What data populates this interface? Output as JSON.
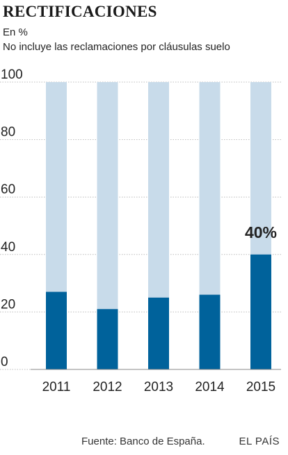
{
  "header": {
    "title": "RECTIFICACIONES",
    "subtitle": "En %",
    "note": "No incluye las reclamaciones por cláusulas suelo"
  },
  "footer": {
    "source": "Fuente: Banco de España.",
    "brand": "EL PAÍS"
  },
  "colors": {
    "background_bar": "#c8dbea",
    "value_bar": "#00629b",
    "grid": "#bcbcbc",
    "text": "#1a1a1a"
  },
  "chart_data": {
    "type": "bar",
    "stacked_to": 100,
    "categories": [
      "2011",
      "2012",
      "2013",
      "2014",
      "2015"
    ],
    "values": [
      27,
      21,
      25,
      26,
      40
    ],
    "ylim": [
      0,
      100
    ],
    "yticks": [
      0,
      20,
      40,
      60,
      80,
      100
    ],
    "grid": true,
    "annotations": [
      {
        "category": "2015",
        "text": "40%"
      }
    ]
  }
}
